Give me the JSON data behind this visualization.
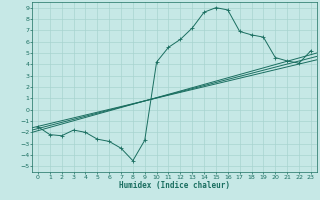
{
  "xlabel": "Humidex (Indice chaleur)",
  "xlim": [
    -0.5,
    23.5
  ],
  "ylim": [
    -5.5,
    9.5
  ],
  "xticks": [
    0,
    1,
    2,
    3,
    4,
    5,
    6,
    7,
    8,
    9,
    10,
    11,
    12,
    13,
    14,
    15,
    16,
    17,
    18,
    19,
    20,
    21,
    22,
    23
  ],
  "yticks": [
    -5,
    -4,
    -3,
    -2,
    -1,
    0,
    1,
    2,
    3,
    4,
    5,
    6,
    7,
    8,
    9
  ],
  "bg_color": "#c6e8e6",
  "grid_color": "#a8d4d0",
  "line_color": "#1a6e60",
  "main_line_x": [
    0,
    1,
    2,
    3,
    4,
    5,
    6,
    7,
    8,
    9,
    10,
    11,
    12,
    13,
    14,
    15,
    16,
    17,
    18,
    19,
    20,
    21,
    22,
    23
  ],
  "main_line_y": [
    -1.5,
    -2.2,
    -2.3,
    -1.8,
    -2.0,
    -2.6,
    -2.8,
    -3.4,
    -4.5,
    -2.7,
    4.2,
    5.5,
    6.2,
    7.2,
    8.6,
    9.0,
    8.8,
    6.9,
    6.6,
    6.4,
    4.6,
    4.3,
    4.1,
    5.2
  ],
  "reg_lines": [
    [
      [
        -0.5,
        23.5
      ],
      [
        -2.0,
        5.0
      ]
    ],
    [
      [
        -0.5,
        23.5
      ],
      [
        -1.8,
        4.7
      ]
    ],
    [
      [
        -0.5,
        23.5
      ],
      [
        -1.6,
        4.4
      ]
    ]
  ]
}
